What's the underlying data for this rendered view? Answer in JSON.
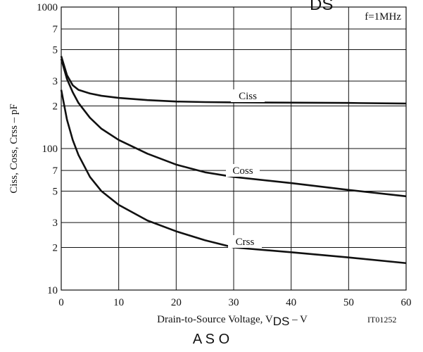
{
  "chart_data": {
    "type": "line",
    "title_fragment": "DS",
    "annotation": "f=1MHz",
    "y_label": "Ciss, Coss, Crss – pF",
    "x_label": [
      "Drain-to-Source Voltage, V",
      "DS",
      " – V"
    ],
    "code": "IT01252",
    "next_title": "A S O",
    "log_y": true,
    "grid": true,
    "x": [
      0,
      1,
      2,
      3,
      5,
      7,
      10,
      15,
      20,
      25,
      30,
      40,
      50,
      60
    ],
    "series": [
      {
        "name": "Ciss",
        "color": "#111111",
        "values": [
          450,
          330,
          280,
          260,
          245,
          236,
          228,
          220,
          215,
          213,
          212,
          211,
          210,
          208
        ]
      },
      {
        "name": "Coss",
        "color": "#111111",
        "values": [
          430,
          310,
          250,
          210,
          165,
          138,
          115,
          92,
          77,
          68,
          63,
          57,
          51,
          46
        ]
      },
      {
        "name": "Crss",
        "color": "#111111",
        "values": [
          260,
          160,
          115,
          90,
          63,
          50,
          40,
          31,
          26,
          22.5,
          20,
          18.5,
          17,
          15.5
        ]
      }
    ],
    "xlim": [
      0,
      60
    ],
    "xticks": [
      0,
      10,
      20,
      30,
      40,
      50,
      60
    ],
    "ylim": [
      10,
      1000
    ],
    "yticks": [
      1000,
      {
        "value": 700,
        "label": "7"
      },
      {
        "value": 500,
        "label": "5"
      },
      {
        "value": 300,
        "label": "3"
      },
      {
        "value": 200,
        "label": "2"
      },
      100,
      {
        "value": 70,
        "label": "7"
      },
      {
        "value": 50,
        "label": "5"
      },
      {
        "value": 30,
        "label": "3"
      },
      {
        "value": 20,
        "label": "2"
      },
      10
    ]
  }
}
